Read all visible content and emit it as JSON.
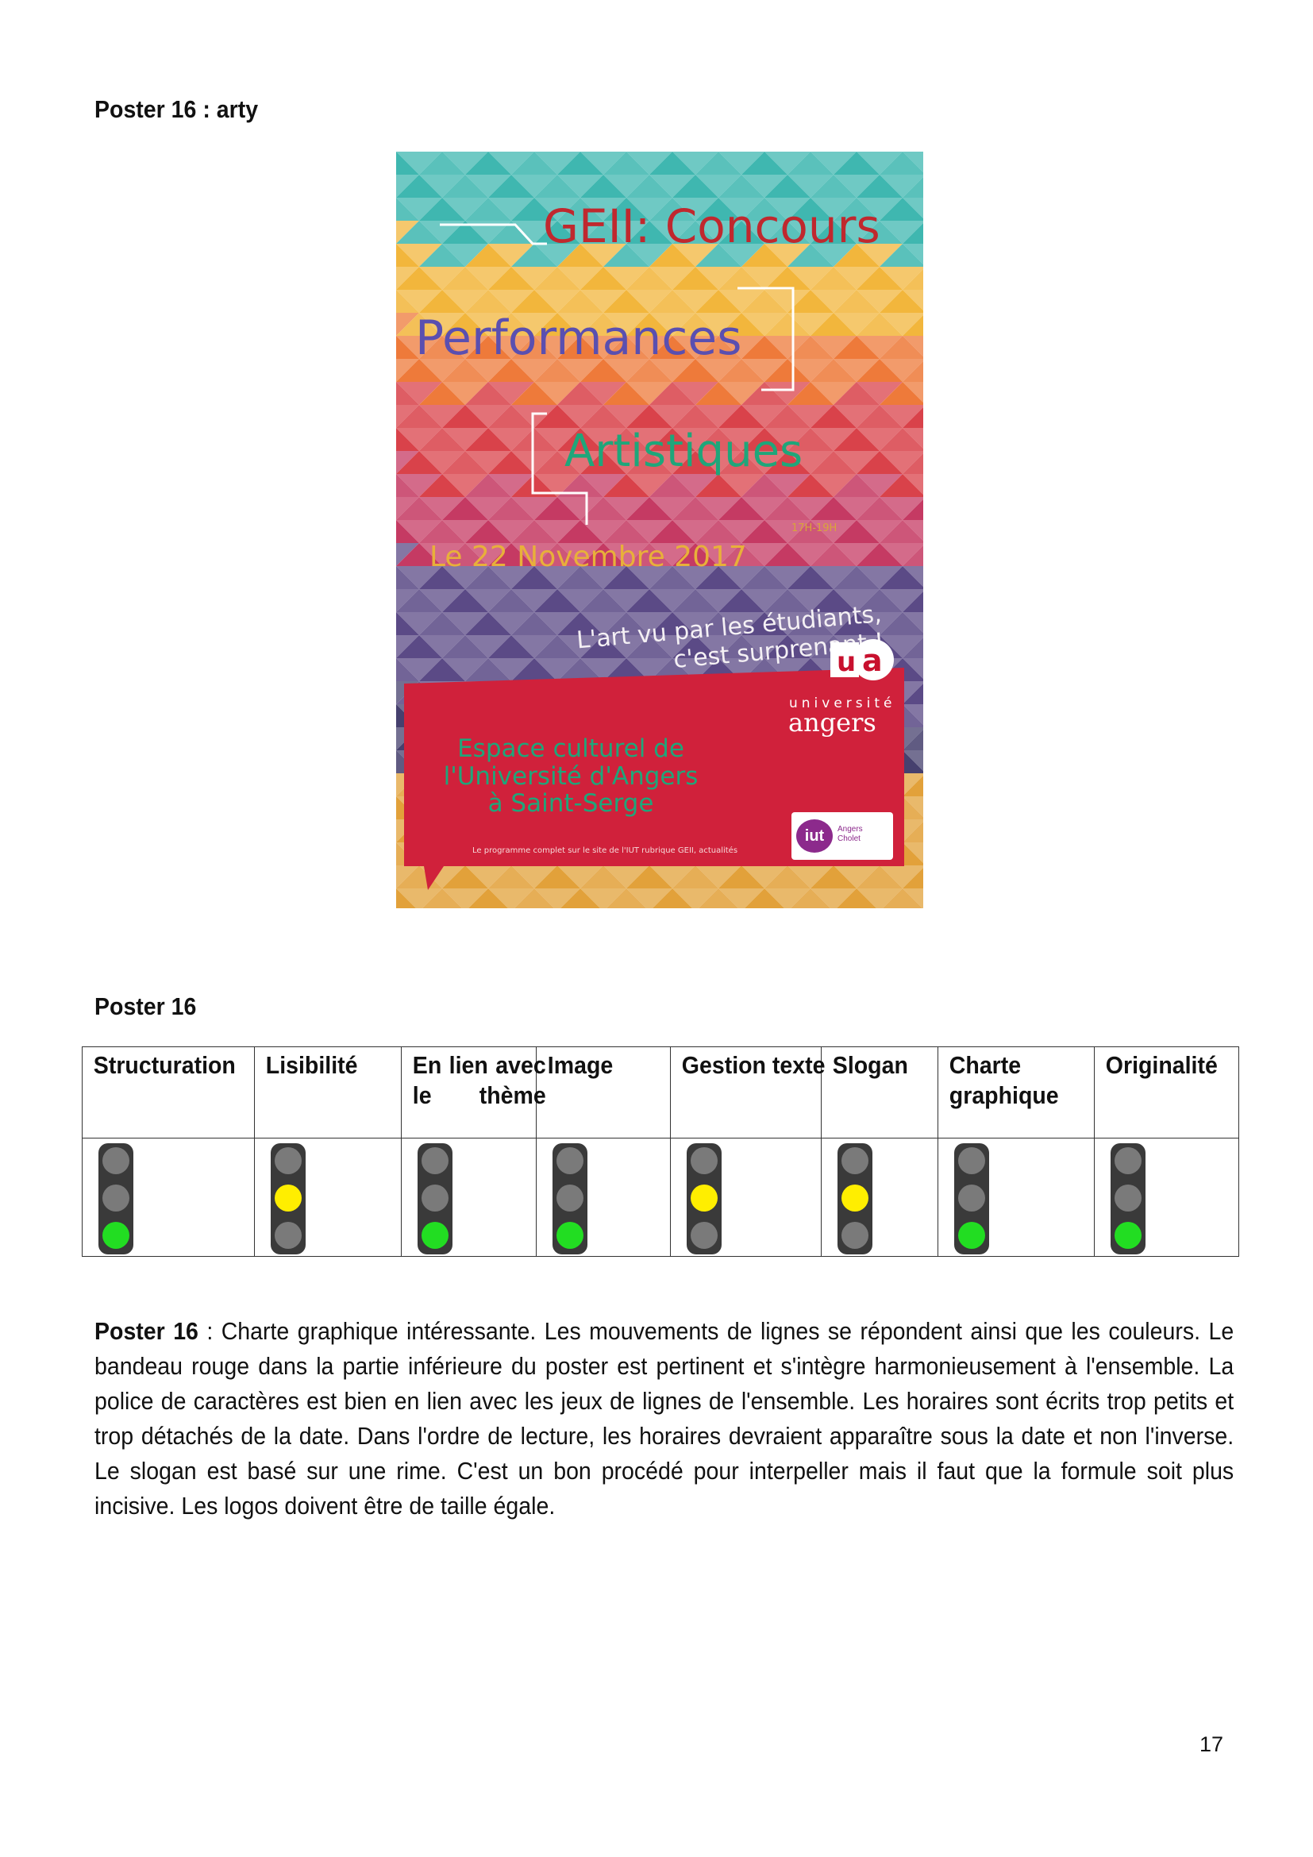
{
  "heading_top": "Poster 16 : arty",
  "poster": {
    "title_line1": "GEII: Concours",
    "title_line2": "Performances",
    "title_line3": "Artistiques",
    "hours": "17H-19H",
    "date": "Le 22 Novembre 2017",
    "slogan": "L'art vu par les étudiants, c'est surprenant !",
    "venue": "Espace culturel de l'Université d'Angers à Saint-Serge",
    "footnote": "Le programme complet sur le site de l'IUT rubrique GEII, actualités",
    "logo_univ_top": "université",
    "logo_univ_name": "angers",
    "logo_ua": "ua",
    "logo_iut": "iut",
    "logo_iut_sub1": "Angers",
    "logo_iut_sub2": "Cholet"
  },
  "heading_table": "Poster 16",
  "table": {
    "headers": [
      "Structuration",
      "Lisibilité",
      "En lien avec le thème",
      "Image",
      "Gestion texte",
      "Slogan",
      "Charte graphique",
      "Originalité"
    ],
    "ratings": [
      "green",
      "yellow",
      "green",
      "green",
      "yellow",
      "yellow",
      "green",
      "green"
    ]
  },
  "commentary": {
    "label": "Poster 16",
    "text": " : Charte graphique intéressante. Les mouvements de lignes se répondent ainsi que les couleurs. Le bandeau rouge dans la partie inférieure du poster est pertinent et s'intègre harmonieusement à l'ensemble. La police de caractères est bien en lien avec les jeux de lignes de l'ensemble. Les horaires sont écrits trop petits et trop détachés de la date. Dans l'ordre de lecture, les horaires devraient apparaître sous la date et non l'inverse. Le slogan est basé sur une rime. C'est un bon procédé pour interpeller mais il faut que la formule soit plus incisive. Les logos doivent être de taille égale."
  },
  "page_number": "17",
  "colors": {
    "light_green": "#22dd22",
    "light_yellow": "#ffee00",
    "light_off": "#7a7a7a",
    "light_body": "#3a3a3a"
  }
}
